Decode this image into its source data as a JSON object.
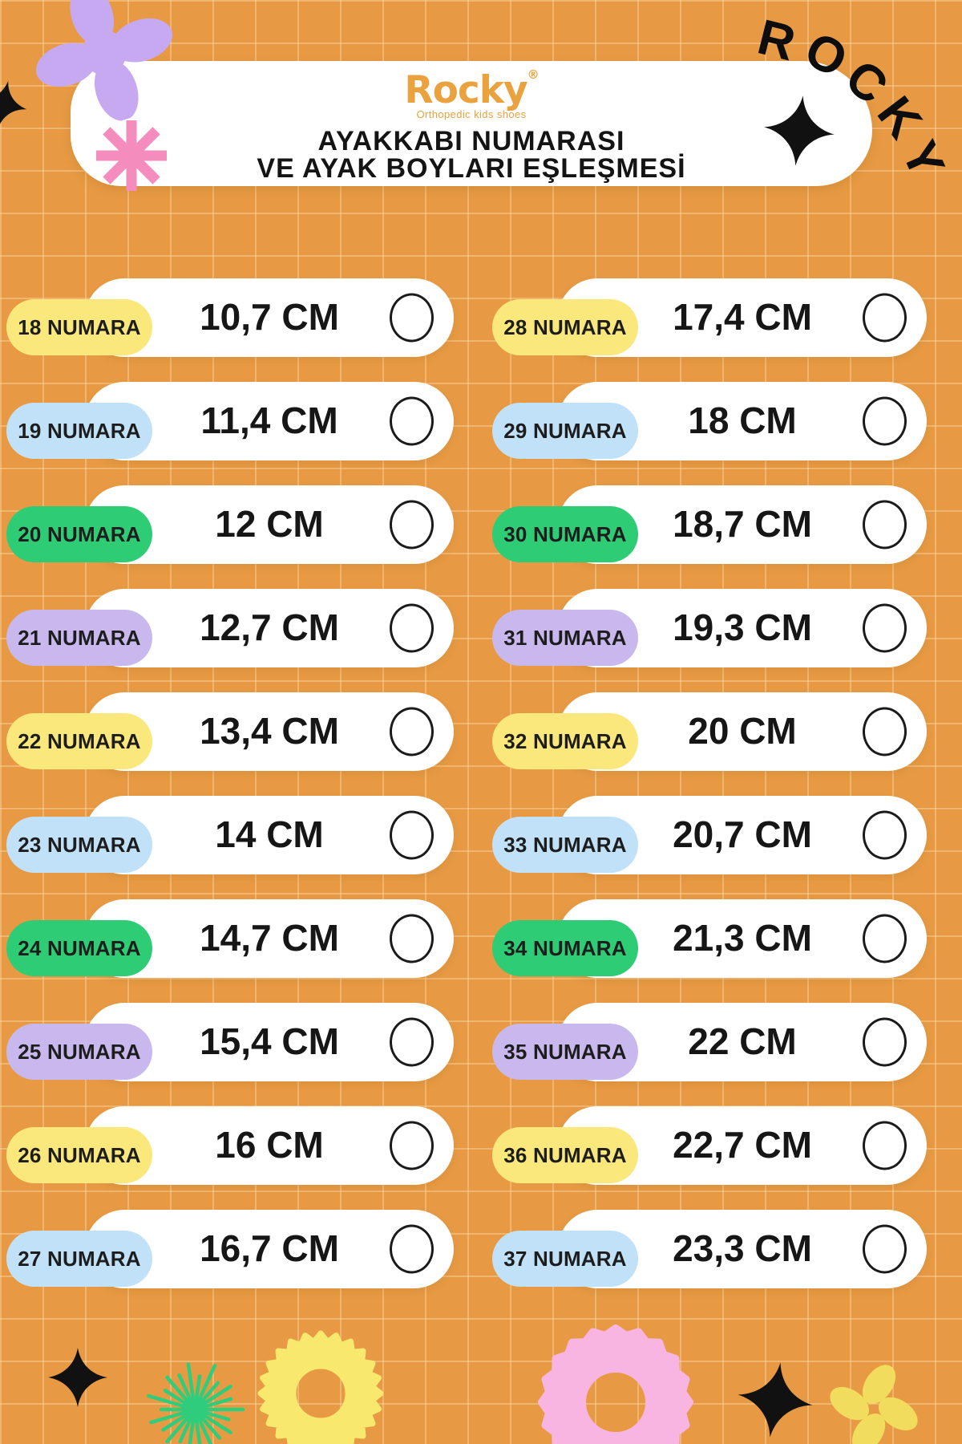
{
  "header": {
    "logo_text": "Rocky",
    "logo_registered_mark": "®",
    "logo_tagline": "Orthopedic kids shoes",
    "title_line1": "AYAKKABI NUMARASI",
    "title_line2": "VE AYAK BOYLARI EŞLEŞMESİ",
    "corner_letters": [
      "R",
      "O",
      "C",
      "K",
      "Y"
    ]
  },
  "size_table": {
    "label_word": "NUMARA",
    "unit": "CM",
    "left_column": [
      {
        "label": "18 NUMARA",
        "value": "10,7 CM",
        "pill_color": "yellow"
      },
      {
        "label": "19 NUMARA",
        "value": "11,4 CM",
        "pill_color": "blue"
      },
      {
        "label": "20 NUMARA",
        "value": "12 CM",
        "pill_color": "green"
      },
      {
        "label": "21 NUMARA",
        "value": "12,7 CM",
        "pill_color": "purple"
      },
      {
        "label": "22 NUMARA",
        "value": "13,4 CM",
        "pill_color": "yellow"
      },
      {
        "label": "23 NUMARA",
        "value": "14 CM",
        "pill_color": "blue"
      },
      {
        "label": "24 NUMARA",
        "value": "14,7 CM",
        "pill_color": "green"
      },
      {
        "label": "25 NUMARA",
        "value": "15,4 CM",
        "pill_color": "purple"
      },
      {
        "label": "26 NUMARA",
        "value": "16 CM",
        "pill_color": "yellow"
      },
      {
        "label": "27 NUMARA",
        "value": "16,7 CM",
        "pill_color": "blue"
      }
    ],
    "right_column": [
      {
        "label": "28 NUMARA",
        "value": "17,4 CM",
        "pill_color": "yellow"
      },
      {
        "label": "29 NUMARA",
        "value": "18 CM",
        "pill_color": "blue"
      },
      {
        "label": "30 NUMARA",
        "value": "18,7 CM",
        "pill_color": "green"
      },
      {
        "label": "31 NUMARA",
        "value": "19,3 CM",
        "pill_color": "purple"
      },
      {
        "label": "32 NUMARA",
        "value": "20 CM",
        "pill_color": "yellow"
      },
      {
        "label": "33 NUMARA",
        "value": "20,7 CM",
        "pill_color": "blue"
      },
      {
        "label": "34 NUMARA",
        "value": "21,3 CM",
        "pill_color": "green"
      },
      {
        "label": "35 NUMARA",
        "value": "22 CM",
        "pill_color": "purple"
      },
      {
        "label": "36 NUMARA",
        "value": "22,7 CM",
        "pill_color": "yellow"
      },
      {
        "label": "37 NUMARA",
        "value": "23,3 CM",
        "pill_color": "blue"
      }
    ]
  },
  "decorations": [
    {
      "name": "purple-flower-icon",
      "color": "#C7A9F2"
    },
    {
      "name": "pink-asterisk-icon",
      "color": "#F48CBE"
    },
    {
      "name": "black-sparkle-icon",
      "color": "#111111"
    },
    {
      "name": "green-burst-icon",
      "color": "#2FCD7B"
    },
    {
      "name": "yellow-gear-ring-icon",
      "color": "#F9E86E"
    },
    {
      "name": "pink-scallop-ring-icon",
      "color": "#F8B5E1"
    },
    {
      "name": "yellow-butterfly-icon",
      "color": "#F1DC5E"
    }
  ],
  "palette": {
    "background_orange": "#E79A43",
    "grid_line": "#FCE0B2",
    "card_white": "#FFFFFF",
    "pill_yellow": "#FAE87D",
    "pill_blue": "#C0E1F8",
    "pill_green": "#2FCC76",
    "pill_purple": "#C9B8EE",
    "brand_orange": "#E9A23E",
    "text_black": "#161616"
  }
}
